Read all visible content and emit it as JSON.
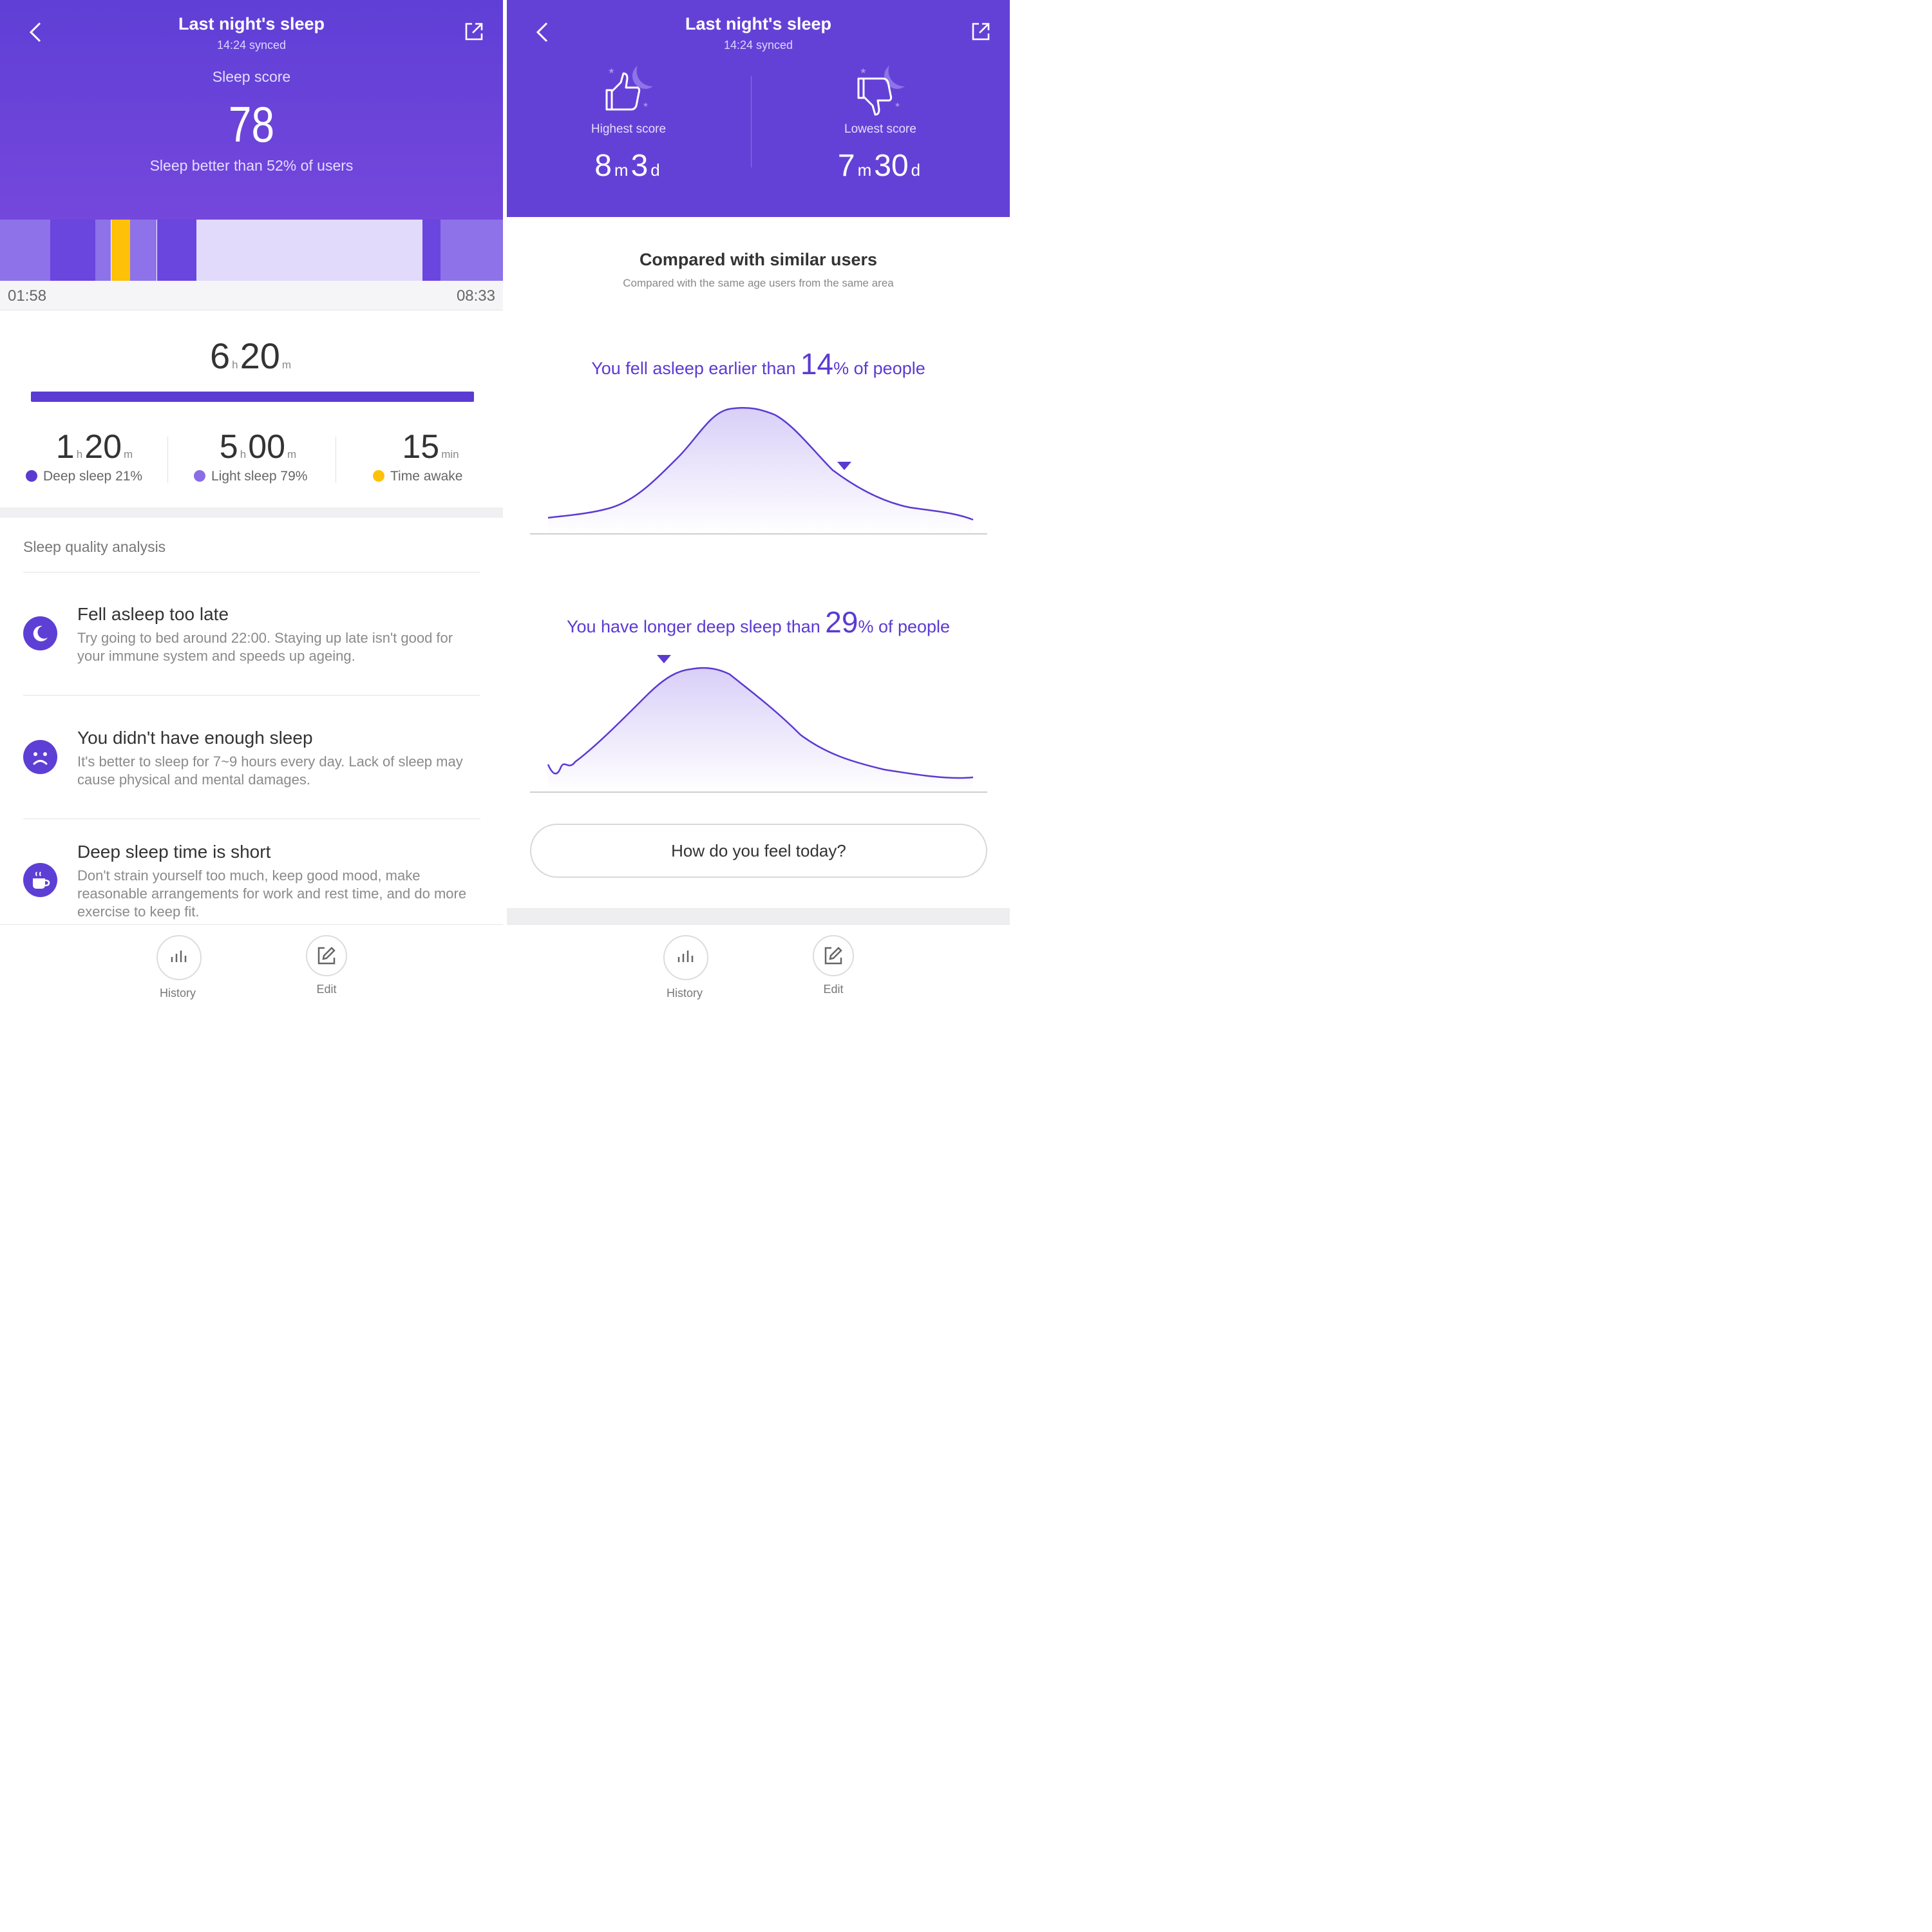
{
  "left": {
    "header": {
      "title": "Last night's sleep",
      "subtitle": "14:24 synced",
      "score_label": "Sleep score",
      "score": "78",
      "comparison": "Sleep better than 52% of users"
    },
    "timeline": {
      "start": "01:58",
      "end": "08:33",
      "segments": [
        {
          "stage": "light",
          "from": 0.0,
          "to": 0.1
        },
        {
          "stage": "deep",
          "from": 0.1,
          "to": 0.19
        },
        {
          "stage": "light",
          "from": 0.19,
          "to": 0.221
        },
        {
          "stage": "awake",
          "from": 0.221,
          "to": 0.259
        },
        {
          "stage": "light",
          "from": 0.259,
          "to": 0.312
        },
        {
          "stage": "deep",
          "from": 0.312,
          "to": 0.391
        },
        {
          "stage": "very-light",
          "from": 0.391,
          "to": 0.84
        },
        {
          "stage": "deep",
          "from": 0.84,
          "to": 0.876
        },
        {
          "stage": "light",
          "from": 0.876,
          "to": 1.0
        }
      ]
    },
    "total": {
      "hours": "6",
      "hours_unit": "h",
      "minutes": "20",
      "minutes_unit": "m"
    },
    "stats": [
      {
        "value1": "1",
        "unit1": "h",
        "value2": "20",
        "unit2": "m",
        "label": "Deep sleep 21%",
        "color": "#5b3ad2"
      },
      {
        "value1": "5",
        "unit1": "h",
        "value2": "00",
        "unit2": "m",
        "label": "Light sleep 79%",
        "color": "#8a6de6"
      },
      {
        "value1": "15",
        "unit1": "min",
        "label": "Time awake",
        "color": "#ffc107"
      }
    ],
    "analysis": {
      "title": "Sleep quality analysis",
      "items": [
        {
          "icon": "moon-icon",
          "title": "Fell asleep too late",
          "desc": "Try going to bed around 22:00. Staying up late isn't good for your immune system and speeds up ageing."
        },
        {
          "icon": "sad-face-icon",
          "title": "You didn't have enough sleep",
          "desc": "It's better to sleep for 7~9 hours every day. Lack of sleep may cause physical and mental damages."
        },
        {
          "icon": "coffee-cup-icon",
          "title": "Deep sleep time is short",
          "desc": "Don't strain yourself too much, keep good mood, make reasonable arrangements for work and rest time, and do more exercise to keep fit."
        }
      ]
    },
    "nav": {
      "history": "History",
      "edit": "Edit"
    }
  },
  "right": {
    "header": {
      "title": "Last night's sleep",
      "subtitle": "14:24 synced",
      "highest": {
        "label": "Highest score",
        "month": "8",
        "month_unit": "m",
        "day": "3",
        "day_unit": "d"
      },
      "lowest": {
        "label": "Lowest score",
        "month": "7",
        "month_unit": "m",
        "day": "30",
        "day_unit": "d"
      }
    },
    "compare": {
      "title": "Compared with similar users",
      "subtitle": "Compared with the same age users from the same area"
    },
    "chart1": {
      "prefix": "You fell asleep earlier than ",
      "value": "14",
      "suffix": "% of people"
    },
    "chart2": {
      "prefix": "You have longer deep sleep than ",
      "value": "29",
      "suffix": "% of people"
    },
    "feel_button": "How do you feel today?",
    "nav": {
      "history": "History",
      "edit": "Edit"
    }
  },
  "colors": {
    "accent": "#5b3ad2",
    "header": "#6441d6",
    "deep": "#6a45de",
    "light": "#8e72e9",
    "very_light": "#e2dafa",
    "awake": "#ffc107"
  }
}
